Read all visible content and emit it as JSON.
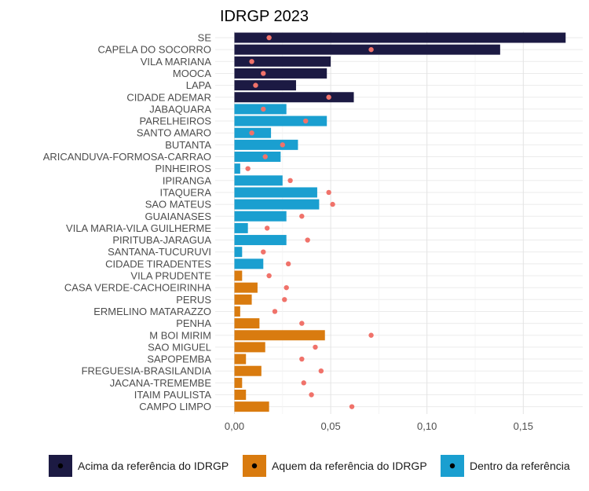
{
  "chart_data": {
    "type": "bar",
    "orientation": "horizontal",
    "title": "IDRGP 2023",
    "xlabel": "",
    "ylabel": "",
    "xlim": [
      0,
      0.175
    ],
    "x_ticks": [
      0,
      0.05,
      0.1,
      0.15
    ],
    "x_tick_labels": [
      "0,00",
      "0,05",
      "0,10",
      "0,15"
    ],
    "grid": true,
    "legend_position": "bottom",
    "categories": [
      "SE",
      "CAPELA DO SOCORRO",
      "VILA MARIANA",
      "MOOCA",
      "LAPA",
      "CIDADE ADEMAR",
      "JABAQUARA",
      "PARELHEIROS",
      "SANTO AMARO",
      "BUTANTA",
      "ARICANDUVA-FORMOSA-CARRAO",
      "PINHEIROS",
      "IPIRANGA",
      "ITAQUERA",
      "SAO MATEUS",
      "GUAIANASES",
      "VILA MARIA-VILA GUILHERME",
      "PIRITUBA-JARAGUA",
      "SANTANA-TUCURUVI",
      "CIDADE TIRADENTES",
      "VILA PRUDENTE",
      "CASA VERDE-CACHOEIRINHA",
      "PERUS",
      "ERMELINO MATARAZZO",
      "PENHA",
      "M BOI MIRIM",
      "SAO MIGUEL",
      "SAPOPEMBA",
      "FREGUESIA-BRASILANDIA",
      "JACANA-TREMEMBE",
      "ITAIM PAULISTA",
      "CAMPO LIMPO"
    ],
    "values": [
      0.172,
      0.138,
      0.05,
      0.048,
      0.032,
      0.062,
      0.027,
      0.048,
      0.019,
      0.033,
      0.024,
      0.003,
      0.025,
      0.043,
      0.044,
      0.027,
      0.007,
      0.027,
      0.004,
      0.015,
      0.004,
      0.012,
      0.009,
      0.003,
      0.013,
      0.047,
      0.016,
      0.006,
      0.014,
      0.004,
      0.006,
      0.018
    ],
    "reference": [
      0.018,
      0.071,
      0.009,
      0.015,
      0.011,
      0.049,
      0.015,
      0.037,
      0.009,
      0.025,
      0.016,
      0.007,
      0.029,
      0.049,
      0.051,
      0.035,
      0.017,
      0.038,
      0.015,
      0.028,
      0.018,
      0.027,
      0.026,
      0.021,
      0.035,
      0.071,
      0.042,
      0.035,
      0.045,
      0.036,
      0.04,
      0.061
    ],
    "groups": [
      "acima",
      "acima",
      "acima",
      "acima",
      "acima",
      "acima",
      "dentro",
      "dentro",
      "dentro",
      "dentro",
      "dentro",
      "dentro",
      "dentro",
      "dentro",
      "dentro",
      "dentro",
      "dentro",
      "dentro",
      "dentro",
      "dentro",
      "aquem",
      "aquem",
      "aquem",
      "aquem",
      "aquem",
      "aquem",
      "aquem",
      "aquem",
      "aquem",
      "aquem",
      "aquem",
      "aquem"
    ],
    "legend": [
      {
        "key": "acima",
        "label": "Acima da referência do IDRGP",
        "color": "#1c1a43"
      },
      {
        "key": "aquem",
        "label": "Aquem da referência do IDRGP",
        "color": "#d97b0f"
      },
      {
        "key": "dentro",
        "label": "Dentro da referência",
        "color": "#1a9fd0"
      }
    ],
    "reference_point_color": "#f0726a",
    "legend_point_color": "#000000"
  }
}
